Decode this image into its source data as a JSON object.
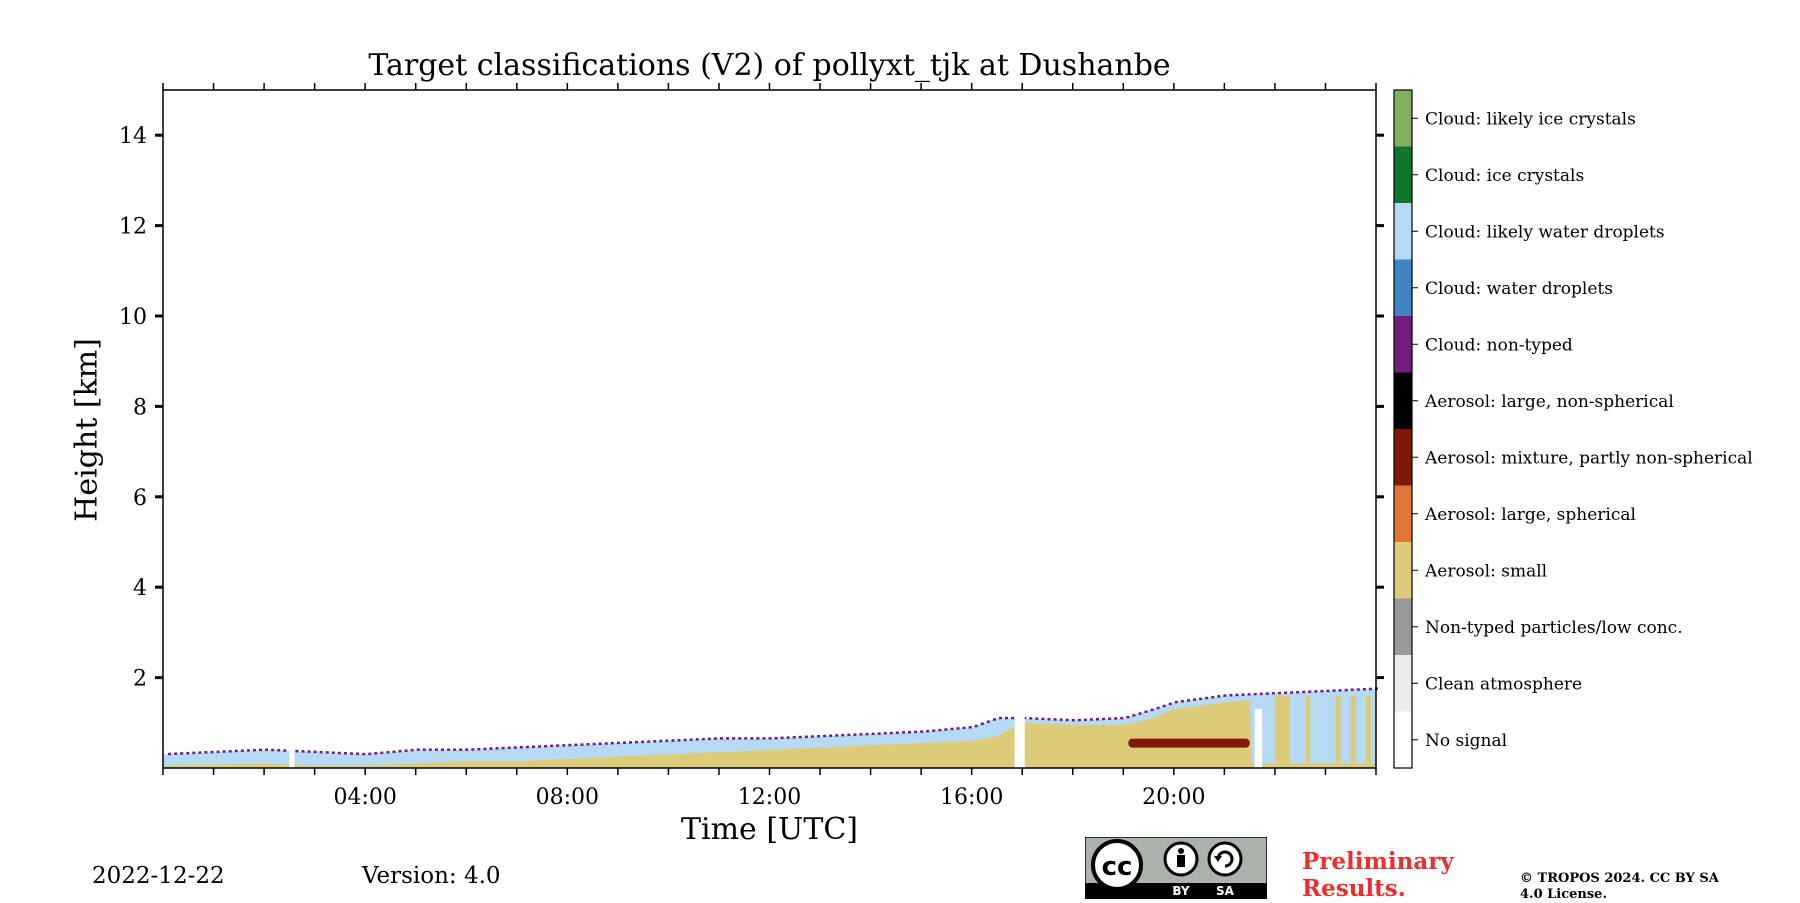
{
  "chart_data": {
    "type": "heatmap",
    "title": "Target classifications (V2) of pollyxt_tjk at Dushanbe",
    "xlabel": "Time [UTC]",
    "ylabel": "Height [km]",
    "xlim": [
      0,
      24
    ],
    "ylim": [
      0,
      15
    ],
    "x_ticks": [
      4,
      8,
      12,
      16,
      20
    ],
    "x_tick_labels": [
      "04:00",
      "08:00",
      "12:00",
      "16:00",
      "20:00"
    ],
    "y_ticks": [
      2,
      4,
      6,
      8,
      10,
      12,
      14
    ],
    "y_tick_labels": [
      "2",
      "4",
      "6",
      "8",
      "10",
      "12",
      "14"
    ],
    "classes": [
      {
        "label": "No signal",
        "color": "#ffffff"
      },
      {
        "label": "Clean atmosphere",
        "color": "#ececec"
      },
      {
        "label": "Non-typed particles/low conc.",
        "color": "#999999"
      },
      {
        "label": "Aerosol: small",
        "color": "#dccb79"
      },
      {
        "label": "Aerosol: large, spherical",
        "color": "#e47539"
      },
      {
        "label": "Aerosol: mixture, partly non-spherical",
        "color": "#7e1a03"
      },
      {
        "label": "Aerosol: large, non-spherical",
        "color": "#000000"
      },
      {
        "label": "Cloud: non-typed",
        "color": "#731c7e"
      },
      {
        "label": "Cloud: water droplets",
        "color": "#3f84c3"
      },
      {
        "label": "Cloud: likely water droplets",
        "color": "#b7daf4"
      },
      {
        "label": "Cloud: ice crystals",
        "color": "#10752f"
      },
      {
        "label": "Cloud: likely ice crystals",
        "color": "#80b060"
      }
    ],
    "layers": {
      "cloud_top_km": [
        [
          0,
          0.3
        ],
        [
          1,
          0.35
        ],
        [
          2,
          0.4
        ],
        [
          3,
          0.35
        ],
        [
          4,
          0.3
        ],
        [
          5,
          0.4
        ],
        [
          6,
          0.4
        ],
        [
          7,
          0.45
        ],
        [
          8,
          0.5
        ],
        [
          9,
          0.55
        ],
        [
          10,
          0.6
        ],
        [
          11,
          0.65
        ],
        [
          12,
          0.65
        ],
        [
          13,
          0.7
        ],
        [
          14,
          0.75
        ],
        [
          15,
          0.8
        ],
        [
          16,
          0.9
        ],
        [
          16.5,
          1.1
        ],
        [
          17,
          1.1
        ],
        [
          18,
          1.05
        ],
        [
          19,
          1.1
        ],
        [
          19.6,
          1.3
        ],
        [
          20,
          1.45
        ],
        [
          21,
          1.6
        ],
        [
          22,
          1.65
        ],
        [
          23,
          1.7
        ],
        [
          24,
          1.75
        ]
      ],
      "aerosol_small_top_km": [
        [
          0,
          0.05
        ],
        [
          2,
          0.1
        ],
        [
          3,
          0.05
        ],
        [
          4,
          0.05
        ],
        [
          5,
          0.1
        ],
        [
          6,
          0.15
        ],
        [
          7,
          0.15
        ],
        [
          8,
          0.2
        ],
        [
          9,
          0.25
        ],
        [
          10,
          0.3
        ],
        [
          11,
          0.35
        ],
        [
          12,
          0.4
        ],
        [
          13,
          0.45
        ],
        [
          14,
          0.5
        ],
        [
          15,
          0.55
        ],
        [
          16,
          0.6
        ],
        [
          16.5,
          0.7
        ],
        [
          17,
          1.0
        ],
        [
          18,
          0.95
        ],
        [
          19,
          0.95
        ],
        [
          19.6,
          1.1
        ],
        [
          20,
          1.3
        ],
        [
          21,
          1.45
        ],
        [
          21.5,
          1.5
        ],
        [
          21.55,
          0.1
        ],
        [
          24,
          0.1
        ]
      ],
      "aerosol_mixture_band_km": {
        "start": 19.1,
        "end": 21.5,
        "bottom": 0.45,
        "top": 0.65
      },
      "data_gaps_utc": [
        [
          2.5,
          2.6
        ],
        [
          16.85,
          17.05
        ],
        [
          21.6,
          21.75
        ]
      ],
      "late_columns_utc": [
        [
          22.0,
          22.3
        ],
        [
          22.6,
          22.7
        ],
        [
          23.2,
          23.3
        ],
        [
          23.5,
          23.6
        ],
        [
          23.8,
          23.9
        ]
      ]
    }
  },
  "footer": {
    "date": "2022-12-22",
    "version": "Version: 4.0",
    "preliminary": "Preliminary Results.",
    "copyright": "© TROPOS 2024. CC BY SA 4.0 License.",
    "cc_badge": {
      "text": "cc",
      "by": "BY",
      "sa": "SA"
    }
  }
}
